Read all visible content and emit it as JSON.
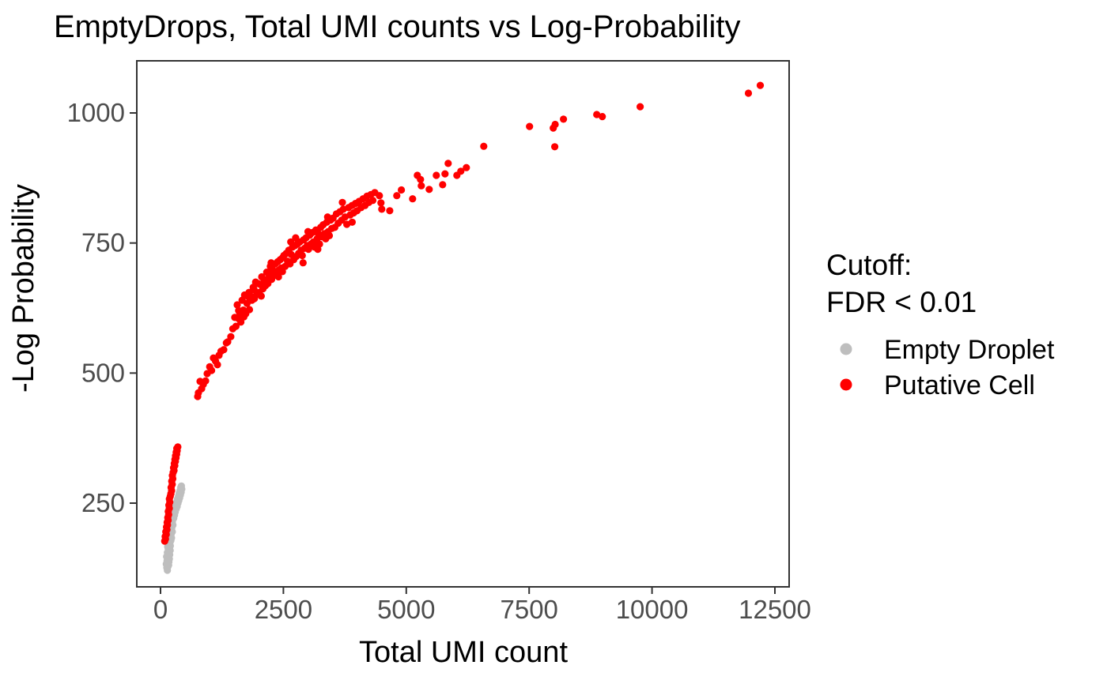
{
  "title": "EmptyDrops, Total UMI counts vs Log-Probability",
  "chart_data": {
    "type": "scatter",
    "title": "EmptyDrops, Total UMI counts vs Log-Probability",
    "xlabel": "Total UMI count",
    "ylabel": "-Log Probability",
    "x_ticks": [
      0,
      2500,
      5000,
      7500,
      10000,
      12500
    ],
    "y_ticks": [
      250,
      500,
      750,
      1000
    ],
    "xlim": [
      -480,
      12790
    ],
    "ylim": [
      89,
      1100
    ],
    "grid": false,
    "background": "#ffffff",
    "panel_border_color": "#333333",
    "tick_color": "#333333",
    "tick_label_color": "#4d4d4d",
    "point_colors": {
      "empty_droplet": "#bebebe",
      "putative_cell": "#ff0000"
    },
    "legend": {
      "position": "right",
      "title_line1": "Cutoff:",
      "title_line2": "FDR < 0.01",
      "entries": [
        {
          "label": "Empty Droplet",
          "color": "#bebebe"
        },
        {
          "label": "Putative Cell",
          "color": "#ff0000"
        }
      ]
    },
    "series": [
      {
        "name": "Empty Droplet",
        "color": "#bebebe",
        "points": [
          [
            140,
            121
          ],
          [
            128,
            126
          ],
          [
            152,
            128
          ],
          [
            165,
            131
          ],
          [
            118,
            133
          ],
          [
            146,
            135
          ],
          [
            171,
            137
          ],
          [
            133,
            139
          ],
          [
            158,
            141
          ],
          [
            180,
            143
          ],
          [
            147,
            145
          ],
          [
            124,
            147
          ],
          [
            163,
            149
          ],
          [
            186,
            151
          ],
          [
            152,
            153
          ],
          [
            140,
            155
          ],
          [
            172,
            157
          ],
          [
            196,
            159
          ],
          [
            158,
            162
          ],
          [
            183,
            164
          ],
          [
            147,
            166
          ],
          [
            200,
            168
          ],
          [
            170,
            170
          ],
          [
            190,
            173
          ],
          [
            162,
            176
          ],
          [
            210,
            178
          ],
          [
            178,
            181
          ],
          [
            223,
            183
          ],
          [
            195,
            185
          ],
          [
            168,
            188
          ],
          [
            215,
            190
          ],
          [
            188,
            193
          ],
          [
            240,
            195
          ],
          [
            205,
            198
          ],
          [
            182,
            201
          ],
          [
            230,
            203
          ],
          [
            198,
            206
          ],
          [
            252,
            208
          ],
          [
            215,
            211
          ],
          [
            242,
            214
          ],
          [
            225,
            217
          ],
          [
            268,
            221
          ],
          [
            247,
            224
          ],
          [
            285,
            227
          ],
          [
            260,
            230
          ],
          [
            300,
            233
          ],
          [
            275,
            236
          ],
          [
            320,
            239
          ],
          [
            292,
            242
          ],
          [
            340,
            244
          ],
          [
            310,
            247
          ],
          [
            355,
            250
          ],
          [
            330,
            252
          ],
          [
            372,
            255
          ],
          [
            348,
            258
          ],
          [
            390,
            260
          ],
          [
            365,
            263
          ],
          [
            405,
            266
          ],
          [
            380,
            269
          ],
          [
            420,
            271
          ],
          [
            398,
            274
          ],
          [
            432,
            277
          ],
          [
            412,
            280
          ],
          [
            425,
            283
          ]
        ]
      },
      {
        "name": "Putative Cell",
        "color": "#ff0000",
        "points": [
          [
            85,
            177
          ],
          [
            102,
            181
          ],
          [
            95,
            186
          ],
          [
            118,
            190
          ],
          [
            108,
            195
          ],
          [
            130,
            199
          ],
          [
            122,
            204
          ],
          [
            142,
            208
          ],
          [
            135,
            213
          ],
          [
            155,
            217
          ],
          [
            148,
            222
          ],
          [
            165,
            228
          ],
          [
            158,
            234
          ],
          [
            178,
            240
          ],
          [
            170,
            246
          ],
          [
            188,
            252
          ],
          [
            180,
            258
          ],
          [
            198,
            263
          ],
          [
            210,
            268
          ],
          [
            225,
            274
          ],
          [
            215,
            280
          ],
          [
            238,
            286
          ],
          [
            228,
            292
          ],
          [
            250,
            297
          ],
          [
            242,
            303
          ],
          [
            258,
            309
          ],
          [
            275,
            313
          ],
          [
            265,
            318
          ],
          [
            290,
            322
          ],
          [
            280,
            326
          ],
          [
            302,
            330
          ],
          [
            292,
            334
          ],
          [
            315,
            337
          ],
          [
            305,
            341
          ],
          [
            328,
            344
          ],
          [
            318,
            348
          ],
          [
            340,
            351
          ],
          [
            332,
            355
          ],
          [
            352,
            358
          ],
          [
            756,
            455
          ],
          [
            770,
            462
          ],
          [
            804,
            484
          ],
          [
            836,
            470
          ],
          [
            870,
            478
          ],
          [
            917,
            485
          ],
          [
            949,
            499
          ],
          [
            1000,
            512
          ],
          [
            1040,
            505
          ],
          [
            1077,
            529
          ],
          [
            1120,
            523
          ],
          [
            1158,
            516
          ],
          [
            1190,
            534
          ],
          [
            1230,
            542
          ],
          [
            1287,
            545
          ],
          [
            1340,
            558
          ],
          [
            1367,
            560
          ],
          [
            1430,
            570
          ],
          [
            1470,
            585
          ],
          [
            1510,
            607
          ],
          [
            1535,
            590
          ],
          [
            1560,
            631
          ],
          [
            1585,
            605
          ],
          [
            1610,
            616
          ],
          [
            1635,
            598
          ],
          [
            1660,
            640
          ],
          [
            1685,
            621
          ],
          [
            1710,
            650
          ],
          [
            1735,
            614
          ],
          [
            1760,
            634
          ],
          [
            1785,
            647
          ],
          [
            1810,
            622
          ],
          [
            1835,
            648
          ],
          [
            1860,
            640
          ],
          [
            1885,
            665
          ],
          [
            1910,
            643
          ],
          [
            1935,
            675
          ],
          [
            1960,
            651
          ],
          [
            1985,
            672
          ],
          [
            2010,
            655
          ],
          [
            2035,
            670
          ],
          [
            2060,
            685
          ],
          [
            2085,
            662
          ],
          [
            2110,
            678
          ],
          [
            2135,
            668
          ],
          [
            2160,
            694
          ],
          [
            2185,
            672
          ],
          [
            2210,
            690
          ],
          [
            2235,
            705
          ],
          [
            2260,
            680
          ],
          [
            2285,
            698
          ],
          [
            2310,
            688
          ],
          [
            2335,
            710
          ],
          [
            2360,
            692
          ],
          [
            2385,
            714
          ],
          [
            2410,
            698
          ],
          [
            2435,
            718
          ],
          [
            2460,
            702
          ],
          [
            2485,
            722
          ],
          [
            1590,
            620
          ],
          [
            1695,
            608
          ],
          [
            1800,
            655
          ],
          [
            1905,
            660
          ],
          [
            2050,
            648
          ],
          [
            2150,
            680
          ],
          [
            2250,
            712
          ],
          [
            2400,
            685
          ],
          [
            2480,
            695
          ],
          [
            2510,
            726
          ],
          [
            2535,
            705
          ],
          [
            2560,
            730
          ],
          [
            2585,
            715
          ],
          [
            2610,
            736
          ],
          [
            2635,
            710
          ],
          [
            2660,
            728
          ],
          [
            2685,
            742
          ],
          [
            2710,
            718
          ],
          [
            2735,
            745
          ],
          [
            2760,
            724
          ],
          [
            2785,
            748
          ],
          [
            2810,
            730
          ],
          [
            2835,
            752
          ],
          [
            2860,
            736
          ],
          [
            2885,
            726
          ],
          [
            2910,
            756
          ],
          [
            2935,
            740
          ],
          [
            2960,
            760
          ],
          [
            2985,
            745
          ],
          [
            3010,
            738
          ],
          [
            3035,
            765
          ],
          [
            3060,
            748
          ],
          [
            3085,
            770
          ],
          [
            3110,
            752
          ],
          [
            3135,
            742
          ],
          [
            3160,
            775
          ],
          [
            3185,
            758
          ],
          [
            3210,
            768
          ],
          [
            3235,
            748
          ],
          [
            3260,
            780
          ],
          [
            3285,
            762
          ],
          [
            3310,
            785
          ],
          [
            3335,
            768
          ],
          [
            3360,
            758
          ],
          [
            3385,
            790
          ],
          [
            3410,
            772
          ],
          [
            3435,
            764
          ],
          [
            3460,
            794
          ],
          [
            3485,
            778
          ],
          [
            2650,
            752
          ],
          [
            2750,
            760
          ],
          [
            2900,
            712
          ],
          [
            3000,
            772
          ],
          [
            3200,
            738
          ],
          [
            3400,
            800
          ],
          [
            3510,
            798
          ],
          [
            3545,
            780
          ],
          [
            3580,
            806
          ],
          [
            3615,
            788
          ],
          [
            3650,
            810
          ],
          [
            3685,
            794
          ],
          [
            3720,
            815
          ],
          [
            3755,
            800
          ],
          [
            3790,
            786
          ],
          [
            3825,
            818
          ],
          [
            3860,
            804
          ],
          [
            3895,
            822
          ],
          [
            3930,
            808
          ],
          [
            3965,
            826
          ],
          [
            4000,
            812
          ],
          [
            4040,
            830
          ],
          [
            4080,
            818
          ],
          [
            4120,
            835
          ],
          [
            4160,
            822
          ],
          [
            4200,
            840
          ],
          [
            4240,
            828
          ],
          [
            4280,
            843
          ],
          [
            4320,
            832
          ],
          [
            4360,
            847
          ],
          [
            3700,
            828
          ],
          [
            3900,
            790
          ],
          [
            4453,
            841
          ],
          [
            4486,
            827
          ],
          [
            4502,
            815
          ],
          [
            4663,
            812
          ],
          [
            4807,
            841
          ],
          [
            4900,
            852
          ],
          [
            5128,
            835
          ],
          [
            5225,
            880
          ],
          [
            5290,
            872
          ],
          [
            5306,
            860
          ],
          [
            5466,
            853
          ],
          [
            5611,
            880
          ],
          [
            5740,
            862
          ],
          [
            5788,
            883
          ],
          [
            5852,
            903
          ],
          [
            6029,
            880
          ],
          [
            6110,
            888
          ],
          [
            6222,
            895
          ],
          [
            6576,
            936
          ],
          [
            7508,
            974
          ],
          [
            7990,
            971
          ],
          [
            8030,
            978
          ],
          [
            8199,
            988
          ],
          [
            8022,
            935
          ],
          [
            8875,
            997
          ],
          [
            8988,
            993
          ],
          [
            9759,
            1012
          ],
          [
            11961,
            1038
          ],
          [
            12203,
            1053
          ]
        ]
      }
    ]
  }
}
